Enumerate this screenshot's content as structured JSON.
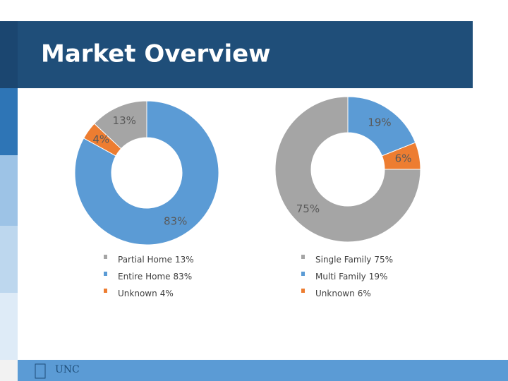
{
  "header": {
    "title": "Market Overview"
  },
  "chart_data": [
    {
      "type": "pie",
      "donut": true,
      "categories": [
        "Partial Home",
        "Entire Home",
        "Unknown"
      ],
      "values": [
        13,
        83,
        4
      ],
      "value_labels": [
        "13%",
        "83%",
        "4%"
      ],
      "colors": [
        "#a5a5a5",
        "#5b9bd5",
        "#ed7d31"
      ]
    },
    {
      "type": "pie",
      "donut": true,
      "categories": [
        "Single Family",
        "Multi Family",
        "Unknown"
      ],
      "values": [
        75,
        19,
        6
      ],
      "value_labels": [
        "75%",
        "19%",
        "6%"
      ],
      "colors": [
        "#a5a5a5",
        "#5b9bd5",
        "#ed7d31"
      ]
    }
  ],
  "footer": {
    "logo": "UNC"
  }
}
